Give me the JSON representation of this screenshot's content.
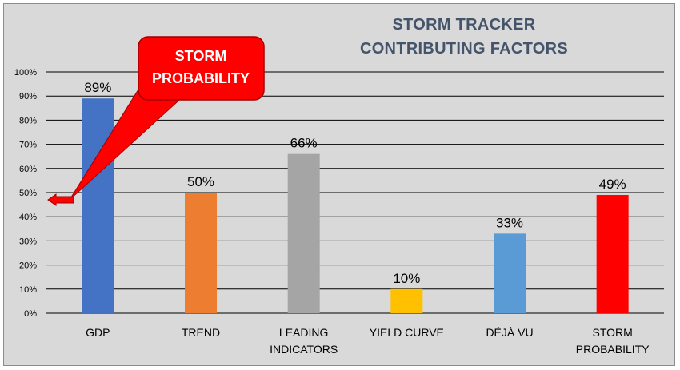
{
  "title": {
    "line1": "STORM TRACKER",
    "line2": "CONTRIBUTING FACTORS"
  },
  "callout": {
    "line1": "STORM",
    "line2": "PROBABILITY",
    "target_value": 0.47
  },
  "colors": {
    "background": "#d9d9d9",
    "gridline": "#000000",
    "title": "#44546a",
    "callout": "#ff0000"
  },
  "chart_data": {
    "type": "bar",
    "categories": [
      [
        "GDP"
      ],
      [
        "TREND"
      ],
      [
        "LEADING",
        "INDICATORS"
      ],
      [
        "YIELD CURVE"
      ],
      [
        "DÉJÀ VU"
      ],
      [
        "STORM",
        "PROBABILITY"
      ]
    ],
    "values": [
      0.89,
      0.5,
      0.66,
      0.1,
      0.33,
      0.49
    ],
    "data_labels": [
      "89%",
      "50%",
      "66%",
      "10%",
      "33%",
      "49%"
    ],
    "bar_colors": [
      "#4472c4",
      "#ed7d31",
      "#a5a5a5",
      "#ffc000",
      "#5b9bd5",
      "#ff0000"
    ],
    "ylim": [
      0,
      1
    ],
    "y_ticks": [
      "0%",
      "10%",
      "20%",
      "30%",
      "40%",
      "50%",
      "60%",
      "70%",
      "80%",
      "90%",
      "100%"
    ],
    "grid": true,
    "xlabel": "",
    "ylabel": ""
  }
}
